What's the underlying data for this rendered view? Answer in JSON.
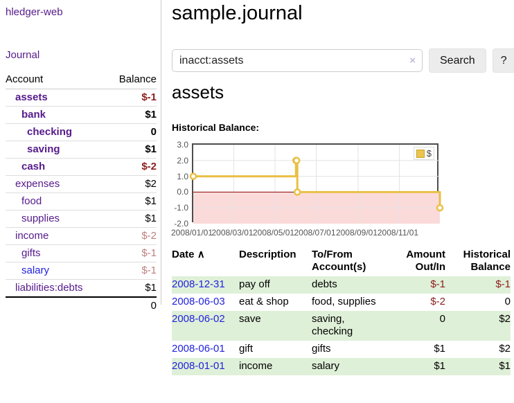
{
  "app": {
    "name": "hledger-web"
  },
  "sidebar": {
    "nav": {
      "journal_label": "Journal"
    },
    "accounts_table": {
      "headers": {
        "account": "Account",
        "balance": "Balance"
      },
      "rows": [
        {
          "name": "assets",
          "balance": "$-1"
        },
        {
          "name": "bank",
          "balance": "$1"
        },
        {
          "name": "checking",
          "balance": "0"
        },
        {
          "name": "saving",
          "balance": "$1"
        },
        {
          "name": "cash",
          "balance": "$-2"
        },
        {
          "name": "expenses",
          "balance": "$2"
        },
        {
          "name": "food",
          "balance": "$1"
        },
        {
          "name": "supplies",
          "balance": "$1"
        },
        {
          "name": "income",
          "balance": "$-2"
        },
        {
          "name": "gifts",
          "balance": "$-1"
        },
        {
          "name": "salary",
          "balance": "$-1"
        },
        {
          "name": "liabilities:debts",
          "balance": "$1"
        }
      ],
      "total": "0"
    }
  },
  "main": {
    "title": "sample.journal",
    "search": {
      "query": "inacct:assets",
      "clear_icon": "×",
      "search_label": "Search",
      "help_label": "?"
    },
    "account_heading": "assets",
    "chart_label": "Historical Balance:",
    "register_table": {
      "headers": {
        "date": "Date",
        "description": "Description",
        "tofrom": "To/From Account(s)",
        "amount": "Amount Out/In",
        "balance": "Historical Balance"
      },
      "sort_indicator": "∧",
      "rows": [
        {
          "date": "2008-12-31",
          "description": "pay off",
          "accounts": "debts",
          "amount": "$-1",
          "balance": "$-1"
        },
        {
          "date": "2008-06-03",
          "description": "eat & shop",
          "accounts": "food, supplies",
          "amount": "$-2",
          "balance": "0"
        },
        {
          "date": "2008-06-02",
          "description": "save",
          "accounts": "saving, checking",
          "amount": "0",
          "balance": "$2"
        },
        {
          "date": "2008-06-01",
          "description": "gift",
          "accounts": "gifts",
          "amount": "$1",
          "balance": "$2"
        },
        {
          "date": "2008-01-01",
          "description": "income",
          "accounts": "salary",
          "amount": "$1",
          "balance": "$1"
        }
      ]
    }
  },
  "chart_data": {
    "type": "line",
    "title": "Historical Balance",
    "series": [
      {
        "name": "$",
        "color": "#e9c045",
        "step": true,
        "points": [
          [
            "2008-01-01",
            1
          ],
          [
            "2008-06-01",
            2
          ],
          [
            "2008-06-02",
            2
          ],
          [
            "2008-06-03",
            0
          ],
          [
            "2008-12-31",
            -1
          ]
        ]
      }
    ],
    "x_range": [
      "2008-01-01",
      "2008-12-31"
    ],
    "x_ticks": [
      {
        "date": "2008-01-01",
        "label": "2008/01/01"
      },
      {
        "date": "2008-03-01",
        "label": "2008/03/01"
      },
      {
        "date": "2008-05-01",
        "label": "2008/05/01"
      },
      {
        "date": "2008-07-01",
        "label": "2008/07/01"
      },
      {
        "date": "2008-09-01",
        "label": "2008/09/01"
      },
      {
        "date": "2008-11-01",
        "label": "2008/11/01"
      }
    ],
    "y_ticks": [
      "3.0",
      "2.0",
      "1.0",
      "0.0",
      "-1.0",
      "-2.0"
    ],
    "ylim": [
      -2,
      3
    ],
    "grid": true,
    "legend": {
      "label": "$",
      "position": "top-right"
    },
    "negative_region_color": "#fbdada",
    "zero_line_color": "#8b0000",
    "gridline_color": "#e3e3e3"
  },
  "colors": {
    "link_purple": "#551a8b",
    "link_blue": "#2222dd",
    "negative_strong": "#8b1d1d",
    "negative_muted": "#bf7e7e",
    "row_highlight_green": "#dff0d8",
    "series_gold": "#e9c045"
  }
}
